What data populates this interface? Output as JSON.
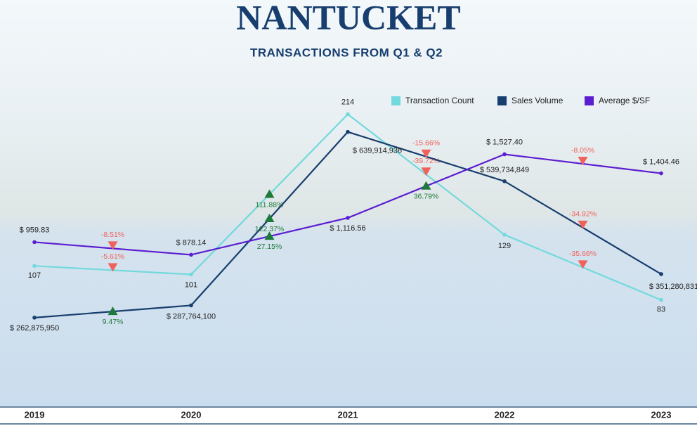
{
  "chart_data": {
    "type": "line",
    "title": "NANTUCKET",
    "subtitle": "TRANSACTIONS FROM Q1 & Q2",
    "categories": [
      "2019",
      "2020",
      "2021",
      "2022",
      "2023"
    ],
    "series": [
      {
        "name": "Transaction Count",
        "color": "#72d9dd",
        "values": [
          107,
          101,
          214,
          129,
          83
        ],
        "ylim": [
          7,
          245
        ],
        "changes": [
          -5.61,
          111.88,
          -39.72,
          -35.66
        ],
        "change_labels": [
          "-5.61%",
          "111.88%",
          "-39.72%",
          "-35.66%"
        ]
      },
      {
        "name": "Sales Volume",
        "color": "#173e6e",
        "values": [
          262875950,
          287764100,
          639914936,
          539734849,
          351280831
        ],
        "value_labels": [
          "$ 262,875,950",
          "$ 287,764,100",
          "$ 639,914,936",
          "$ 539,734,849",
          "$ 351,280,831"
        ],
        "ylim": [
          80000000,
          765000000
        ],
        "changes": [
          9.47,
          122.37,
          -15.66,
          -34.92
        ],
        "change_labels": [
          "9.47%",
          "122.37%",
          "-15.66%",
          "-34.92%"
        ]
      },
      {
        "name": "Average $/SF",
        "color": "#5b1dd0",
        "values": [
          959.83,
          878.14,
          1116.56,
          1527.4,
          1404.46
        ],
        "value_labels": [
          "$ 959.83",
          "$ 878.14",
          "$ 1,116.56",
          "$ 1,527.40",
          "$ 1,404.46"
        ],
        "ylim": [
          -110,
          2070
        ],
        "changes": [
          -8.51,
          27.15,
          36.79,
          -8.05
        ],
        "change_labels": [
          "-8.51%",
          "27.15%",
          "36.79%",
          "-8.05%"
        ]
      }
    ],
    "up_color": "#1e7a3a",
    "down_color": "#f0625c"
  }
}
